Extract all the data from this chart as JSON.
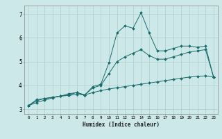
{
  "background_color": "#cce8e8",
  "grid_color": "#b0cccc",
  "line_color": "#1a6b6b",
  "xlabel": "Humidex (Indice chaleur)",
  "xlim": [
    -0.5,
    23.5
  ],
  "ylim": [
    2.8,
    7.35
  ],
  "xticks": [
    0,
    1,
    2,
    3,
    4,
    5,
    6,
    7,
    8,
    9,
    10,
    11,
    12,
    13,
    14,
    15,
    16,
    17,
    18,
    19,
    20,
    21,
    22,
    23
  ],
  "yticks": [
    3,
    4,
    5,
    6,
    7
  ],
  "line1_x": [
    0,
    1,
    2,
    3,
    4,
    5,
    6,
    7,
    8,
    9,
    10,
    11,
    12,
    13,
    14,
    15,
    16,
    17,
    18,
    19,
    20,
    21,
    22,
    23
  ],
  "line1_y": [
    3.15,
    3.4,
    3.45,
    3.5,
    3.55,
    3.65,
    3.7,
    3.6,
    3.95,
    4.05,
    4.95,
    6.2,
    6.5,
    6.4,
    7.05,
    6.2,
    5.45,
    5.45,
    5.55,
    5.65,
    5.65,
    5.6,
    5.65,
    4.35
  ],
  "line2_x": [
    0,
    1,
    2,
    3,
    4,
    5,
    6,
    7,
    8,
    9,
    10,
    11,
    12,
    13,
    14,
    15,
    16,
    17,
    18,
    19,
    20,
    21,
    22,
    23
  ],
  "line2_y": [
    3.15,
    3.35,
    3.45,
    3.5,
    3.55,
    3.6,
    3.7,
    3.6,
    3.9,
    4.0,
    4.5,
    5.0,
    5.2,
    5.35,
    5.5,
    5.25,
    5.1,
    5.1,
    5.2,
    5.3,
    5.4,
    5.45,
    5.5,
    4.35
  ],
  "line3_x": [
    0,
    1,
    2,
    3,
    4,
    5,
    6,
    7,
    8,
    9,
    10,
    11,
    12,
    13,
    14,
    15,
    16,
    17,
    18,
    19,
    20,
    21,
    22,
    23
  ],
  "line3_y": [
    3.15,
    3.28,
    3.38,
    3.48,
    3.55,
    3.58,
    3.62,
    3.6,
    3.7,
    3.78,
    3.85,
    3.9,
    3.95,
    4.0,
    4.05,
    4.1,
    4.15,
    4.2,
    4.25,
    4.3,
    4.35,
    4.38,
    4.4,
    4.35
  ],
  "xlabel_fontsize": 5.5,
  "xtick_fontsize": 4.2,
  "ytick_fontsize": 5.5,
  "marker_size": 2.0,
  "linewidth": 0.7
}
